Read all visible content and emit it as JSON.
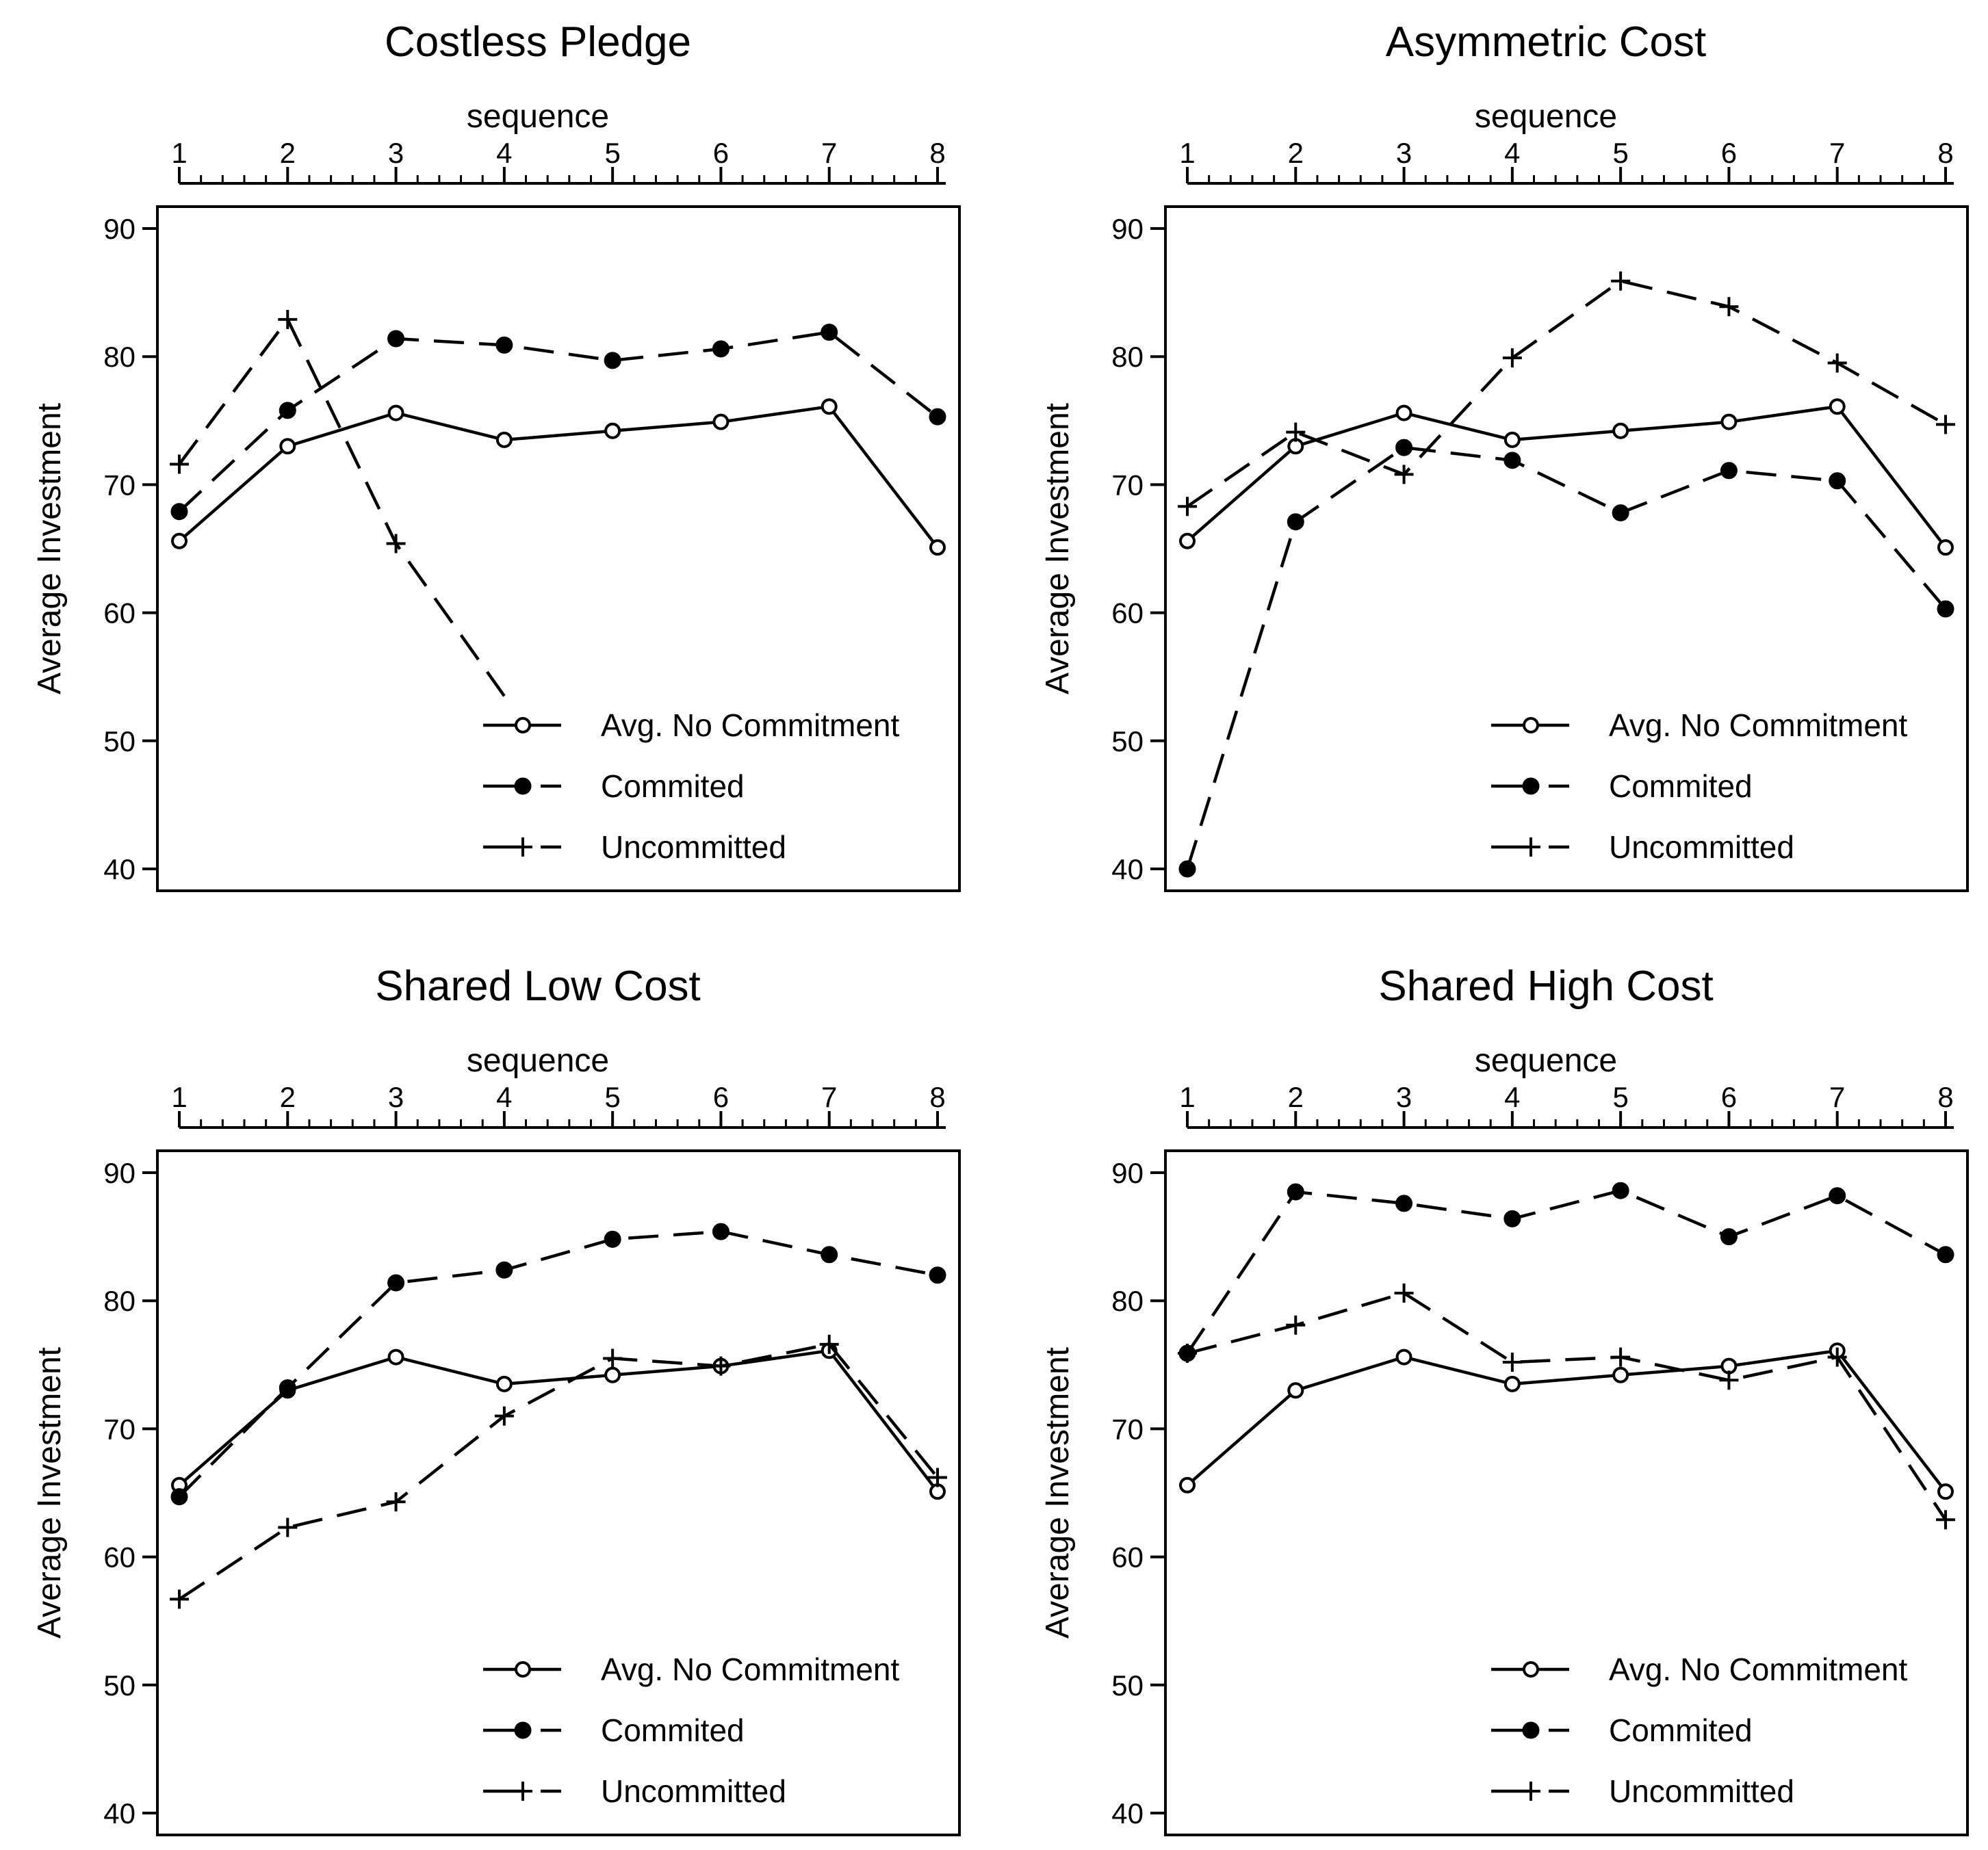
{
  "chart_data": [
    {
      "type": "line",
      "title": "Costless Pledge",
      "xlabel": "sequence",
      "ylabel": "Average Investment",
      "x": [
        1,
        2,
        3,
        4,
        5,
        6,
        7,
        8
      ],
      "xticks": [
        "1",
        "2",
        "3",
        "4",
        "5",
        "6",
        "7",
        "8"
      ],
      "ylim": [
        40,
        90
      ],
      "yticks": [
        "40",
        "50",
        "60",
        "70",
        "80",
        "90"
      ],
      "series": [
        {
          "name": "Avg. No Commitment",
          "marker": "open-circle",
          "dash": "solid",
          "values": [
            65.6,
            73.0,
            75.6,
            73.5,
            74.2,
            74.9,
            76.1,
            65.1
          ]
        },
        {
          "name": "Commited",
          "marker": "filled-circle",
          "dash": "dashed",
          "values": [
            67.9,
            75.8,
            81.4,
            80.9,
            79.7,
            80.6,
            81.9,
            75.3
          ]
        },
        {
          "name": "Uncommitted",
          "marker": "plus",
          "dash": "dashed",
          "values": [
            71.6,
            82.9,
            65.4,
            53.5,
            null,
            null,
            null,
            null
          ]
        }
      ]
    },
    {
      "type": "line",
      "title": "Asymmetric Cost",
      "xlabel": "sequence",
      "ylabel": "Average Investment",
      "x": [
        1,
        2,
        3,
        4,
        5,
        6,
        7,
        8
      ],
      "xticks": [
        "1",
        "2",
        "3",
        "4",
        "5",
        "6",
        "7",
        "8"
      ],
      "ylim": [
        40,
        90
      ],
      "yticks": [
        "40",
        "50",
        "60",
        "70",
        "80",
        "90"
      ],
      "series": [
        {
          "name": "Avg. No Commitment",
          "marker": "open-circle",
          "dash": "solid",
          "values": [
            65.6,
            73.0,
            75.6,
            73.5,
            74.2,
            74.9,
            76.1,
            65.1
          ]
        },
        {
          "name": "Commited",
          "marker": "filled-circle",
          "dash": "dashed",
          "values": [
            40.0,
            67.1,
            72.9,
            71.9,
            67.8,
            71.1,
            70.3,
            60.3
          ]
        },
        {
          "name": "Uncommitted",
          "marker": "plus",
          "dash": "dashed",
          "values": [
            68.3,
            74.1,
            70.8,
            79.9,
            85.9,
            83.9,
            79.5,
            74.7
          ]
        }
      ]
    },
    {
      "type": "line",
      "title": "Shared Low Cost",
      "xlabel": "sequence",
      "ylabel": "Average Investment",
      "x": [
        1,
        2,
        3,
        4,
        5,
        6,
        7,
        8
      ],
      "xticks": [
        "1",
        "2",
        "3",
        "4",
        "5",
        "6",
        "7",
        "8"
      ],
      "ylim": [
        40,
        90
      ],
      "yticks": [
        "40",
        "50",
        "60",
        "70",
        "80",
        "90"
      ],
      "series": [
        {
          "name": "Avg. No Commitment",
          "marker": "open-circle",
          "dash": "solid",
          "values": [
            65.6,
            73.0,
            75.6,
            73.5,
            74.2,
            74.9,
            76.1,
            65.1
          ]
        },
        {
          "name": "Commited",
          "marker": "filled-circle",
          "dash": "dashed",
          "values": [
            64.7,
            73.2,
            81.4,
            82.4,
            84.8,
            85.4,
            83.6,
            82.0
          ]
        },
        {
          "name": "Uncommitted",
          "marker": "plus",
          "dash": "dashed",
          "values": [
            56.7,
            62.3,
            64.3,
            71.0,
            75.5,
            74.9,
            76.6,
            66.2
          ]
        }
      ]
    },
    {
      "type": "line",
      "title": "Shared High Cost",
      "xlabel": "sequence",
      "ylabel": "Average Investment",
      "x": [
        1,
        2,
        3,
        4,
        5,
        6,
        7,
        8
      ],
      "xticks": [
        "1",
        "2",
        "3",
        "4",
        "5",
        "6",
        "7",
        "8"
      ],
      "ylim": [
        40,
        90
      ],
      "yticks": [
        "40",
        "50",
        "60",
        "70",
        "80",
        "90"
      ],
      "series": [
        {
          "name": "Avg. No Commitment",
          "marker": "open-circle",
          "dash": "solid",
          "values": [
            65.6,
            73.0,
            75.6,
            73.5,
            74.2,
            74.9,
            76.1,
            65.1
          ]
        },
        {
          "name": "Commited",
          "marker": "filled-circle",
          "dash": "dashed",
          "values": [
            75.9,
            88.5,
            87.6,
            86.4,
            88.6,
            85.0,
            88.2,
            83.6
          ]
        },
        {
          "name": "Uncommitted",
          "marker": "plus",
          "dash": "dashed",
          "values": [
            75.9,
            78.1,
            80.6,
            75.2,
            75.6,
            73.8,
            75.6,
            62.9
          ]
        }
      ]
    }
  ]
}
